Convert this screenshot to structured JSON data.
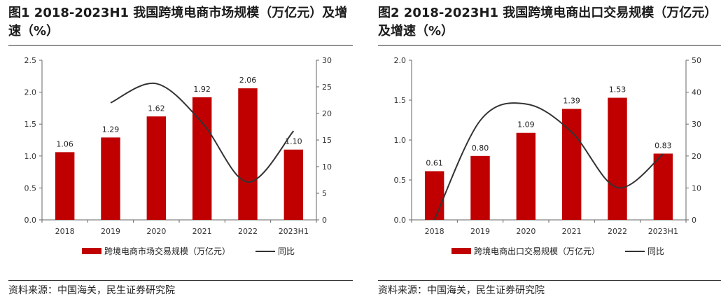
{
  "colors": {
    "bar": "#c00000",
    "line": "#333333",
    "axis": "#666666"
  },
  "panels": [
    {
      "title": "图1  2018-2023H1 我国跨境电商市场规模（万亿元）及增速（%）",
      "source": "资料来源：中国海关，民生证券研究院",
      "legend": {
        "bar": "跨境电商市场交易规模（万亿元）",
        "line": "同比"
      },
      "chart_data": {
        "type": "bar",
        "categories": [
          "2018",
          "2019",
          "2020",
          "2021",
          "2022",
          "2023H1"
        ],
        "series": [
          {
            "name": "跨境电商市场交易规模（万亿元）",
            "type": "bar",
            "axis": "left",
            "values": [
              1.06,
              1.29,
              1.62,
              1.92,
              2.06,
              1.1
            ],
            "labels": [
              "1.06",
              "1.29",
              "1.62",
              "1.92",
              "2.06",
              "1.10"
            ]
          },
          {
            "name": "同比",
            "type": "line",
            "axis": "right",
            "values": [
              null,
              22.0,
              25.6,
              18.3,
              7.1,
              16.7
            ]
          }
        ],
        "yleft": {
          "lim": [
            0,
            2.5
          ],
          "ticks": [
            "0.0",
            "0.5",
            "1.0",
            "1.5",
            "2.0",
            "2.5"
          ]
        },
        "yright": {
          "lim": [
            0,
            30
          ],
          "ticks": [
            "0",
            "5",
            "10",
            "15",
            "20",
            "25",
            "30"
          ]
        },
        "grid": false,
        "legend_position": "bottom"
      }
    },
    {
      "title": "图2  2018-2023H1 我国跨境电商出口交易规模（万亿元）及增速（%）",
      "source": "资料来源：中国海关，民生证券研究院",
      "legend": {
        "bar": "跨境电商出口交易规模（万亿元）",
        "line": "同比"
      },
      "chart_data": {
        "type": "bar",
        "categories": [
          "2018",
          "2019",
          "2020",
          "2021",
          "2022",
          "2023H1"
        ],
        "series": [
          {
            "name": "跨境电商出口交易规模（万亿元）",
            "type": "bar",
            "axis": "left",
            "values": [
              0.61,
              0.8,
              1.09,
              1.39,
              1.53,
              0.83
            ],
            "labels": [
              "0.61",
              "0.80",
              "1.09",
              "1.39",
              "1.53",
              "0.83"
            ]
          },
          {
            "name": "同比",
            "type": "line",
            "axis": "right",
            "values": [
              0.0,
              31.1,
              36.3,
              27.5,
              10.1,
              20.6
            ]
          }
        ],
        "yleft": {
          "lim": [
            0,
            2.0
          ],
          "ticks": [
            "0.0",
            "0.5",
            "1.0",
            "1.5",
            "2.0"
          ]
        },
        "yright": {
          "lim": [
            0,
            50
          ],
          "ticks": [
            "0",
            "10",
            "20",
            "30",
            "40",
            "50"
          ]
        },
        "grid": false,
        "legend_position": "bottom"
      }
    }
  ]
}
